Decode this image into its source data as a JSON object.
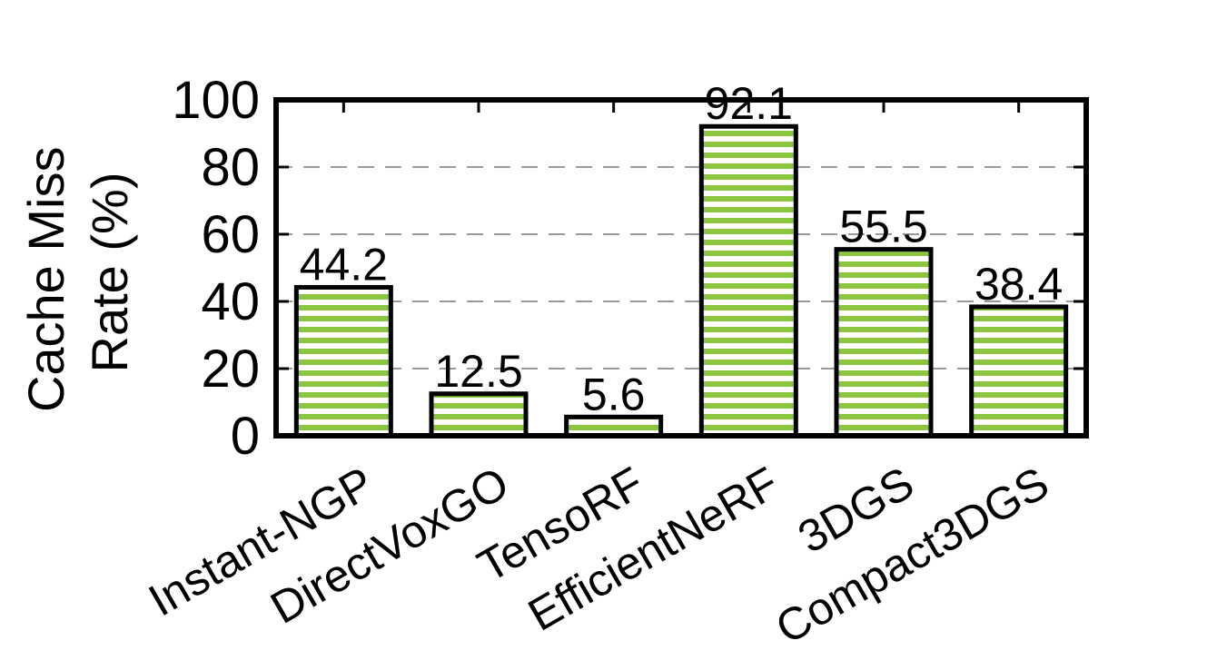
{
  "chart_data": {
    "type": "bar",
    "title": "",
    "xlabel": "",
    "ylabel_lines": [
      "Cache Miss",
      "Rate (%)"
    ],
    "categories": [
      "Instant-NGP",
      "DirectVoxGO",
      "TensoRF",
      "EfficientNeRF",
      "3DGS",
      "Compact3DGS"
    ],
    "values": [
      44.2,
      12.5,
      5.6,
      92.1,
      55.5,
      38.4
    ],
    "value_labels": [
      "44.2",
      "12.5",
      "5.6",
      "92.1",
      "55.5",
      "38.4"
    ],
    "ylim": [
      0,
      100
    ],
    "yticks": [
      0,
      20,
      40,
      60,
      80,
      100
    ],
    "grid": "y-dashed",
    "legend": "none",
    "bar_pattern": "horizontal-stripes",
    "colors": {
      "bar_fill": "#8cc63f",
      "bar_stripe": "#ffffff",
      "bar_edge": "#000000",
      "grid": "#999999",
      "frame": "#000000"
    }
  }
}
